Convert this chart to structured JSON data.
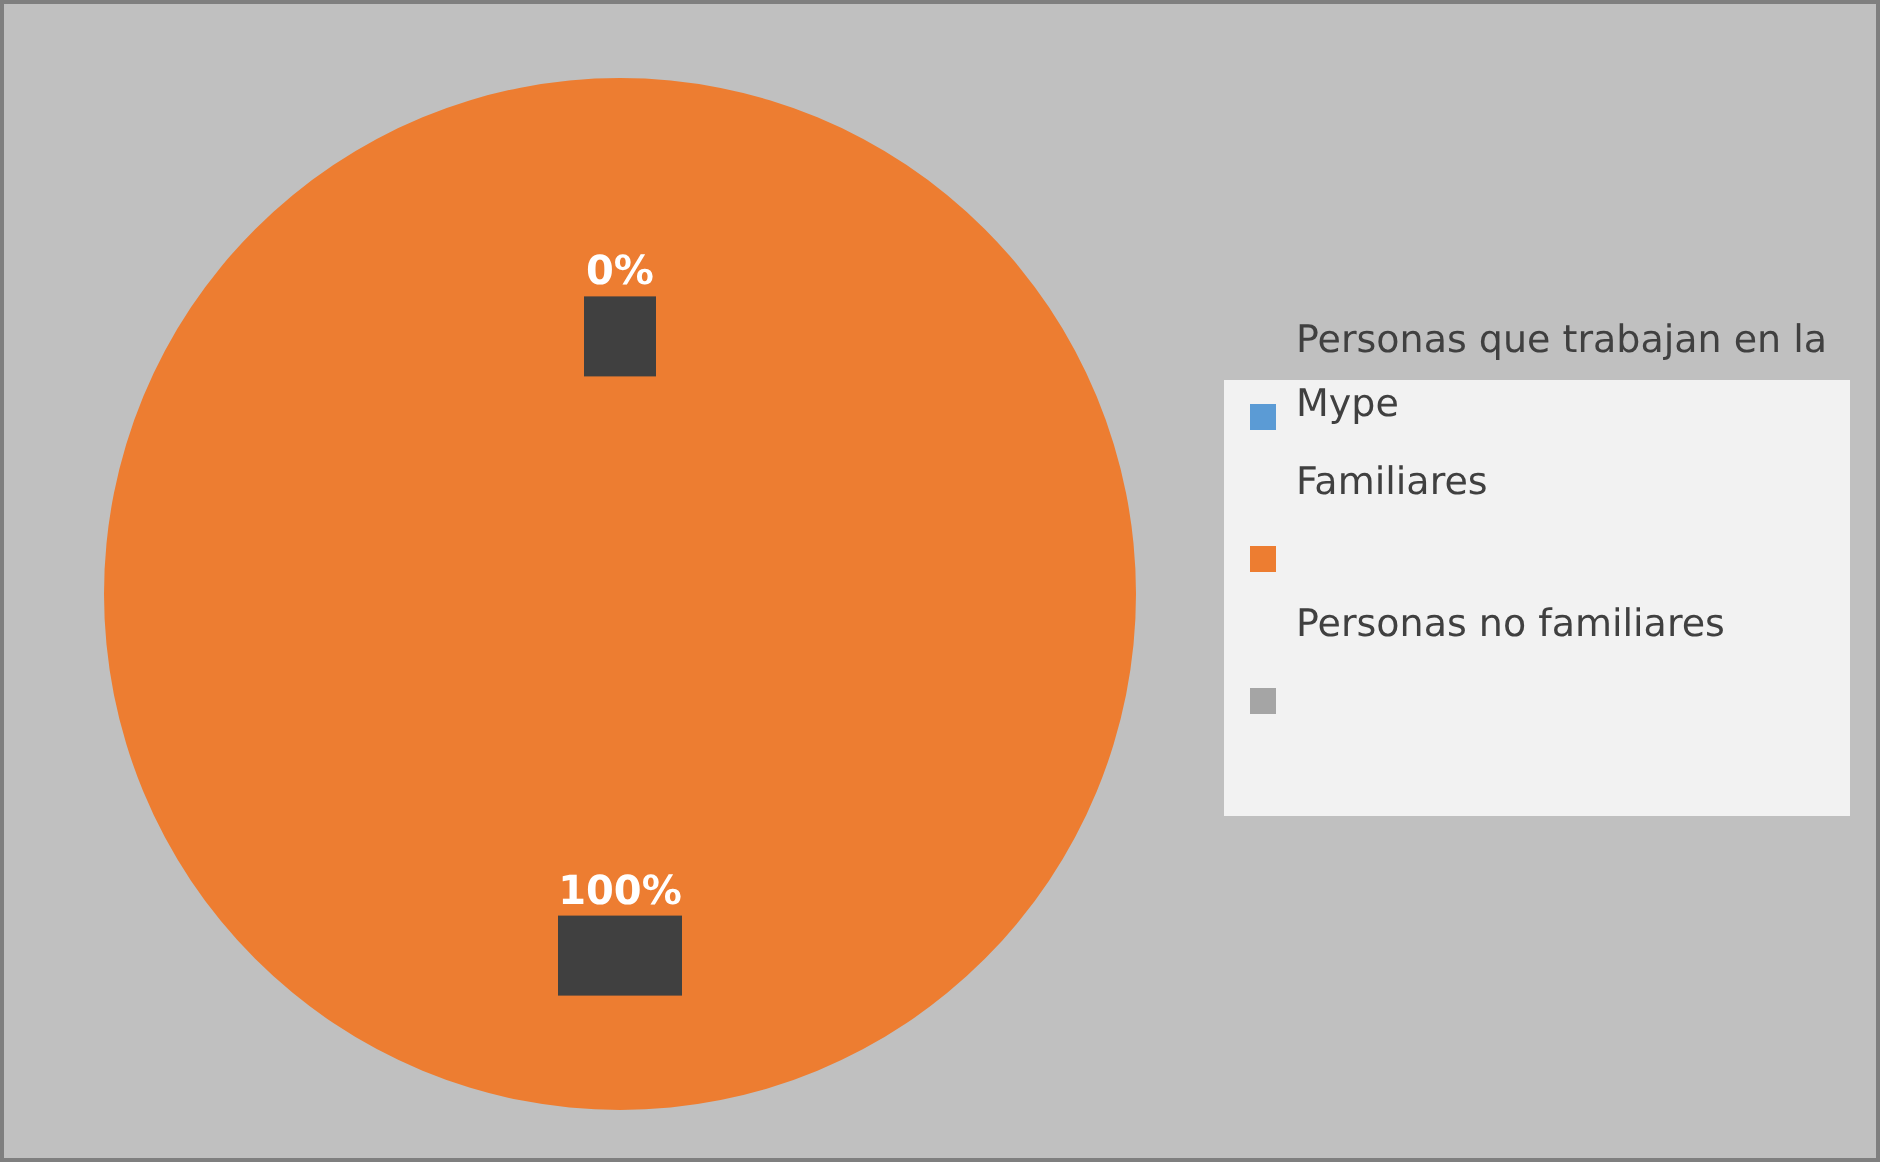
{
  "chart_data": {
    "type": "pie",
    "categories": [
      "Personas que trabajan en la Mype",
      "Familiares",
      "Personas no familiares"
    ],
    "values": [
      0,
      100,
      0
    ],
    "colors": [
      "#5b9bd5",
      "#ed7d31",
      "#a5a5a5"
    ],
    "value_labels": [
      "0%",
      "100%",
      null
    ],
    "legend": "right"
  }
}
